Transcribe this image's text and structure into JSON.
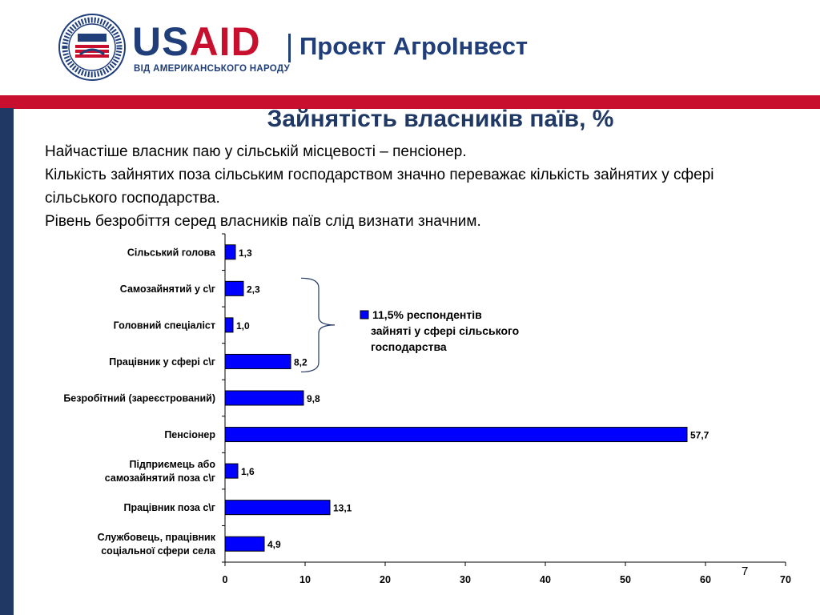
{
  "header": {
    "logo_seal_text": "UNITED STATES AGENCY INTERNATIONAL DEVELOPMENT USAID",
    "logo_word_us": "US",
    "logo_word_aid": "AID",
    "logo_subtitle": "ВІД АМЕРИКАНСЬКОГО НАРОДУ",
    "project_name": "Проект АгроІнвест"
  },
  "colors": {
    "navy": "#1f3864",
    "red": "#c8102e",
    "bar": "#0000ff"
  },
  "slide": {
    "title": "Зайнятість власників паїв, %",
    "paragraphs": [
      "Найчастіше власник паю у сільській місцевості – пенсіонер.",
      "Кількість зайнятих поза сільським господарством значно переважає кількість зайнятих у сфері сільського господарства.",
      "Рівень безробіття серед власників паїв слід визнати значним."
    ],
    "page_number": "7"
  },
  "chart_data": {
    "type": "bar",
    "orientation": "horizontal",
    "categories": [
      "Сільський голова",
      "Самозайнятий у с\\г",
      "Головний спеціаліст",
      "Працівник у сфері с\\г",
      "Безробітний (зареєстрований)",
      "Пенсіонер",
      "Підприємець або самозайнятий поза с\\г",
      "Працівник поза с\\г",
      "Службовець, працівник соціальної сфери села"
    ],
    "category_lines": [
      [
        "Сільський голова"
      ],
      [
        "Самозайнятий у с\\г"
      ],
      [
        "Головний спеціаліст"
      ],
      [
        "Працівник у сфері с\\г"
      ],
      [
        "Безробітний (зареєстрований)"
      ],
      [
        "Пенсіонер"
      ],
      [
        "Підприємець або",
        "самозайнятий поза с\\г"
      ],
      [
        "Працівник поза с\\г"
      ],
      [
        "Службовець, працівник",
        "соціальної сфери села"
      ]
    ],
    "values": [
      1.3,
      2.3,
      1.0,
      8.2,
      9.8,
      57.7,
      1.6,
      13.1,
      4.9
    ],
    "value_labels": [
      "1,3",
      "2,3",
      "1,0",
      "8,2",
      "9,8",
      "57,7",
      "1,6",
      "13,1",
      "4,9"
    ],
    "xlim": [
      0,
      70
    ],
    "xticks": [
      0,
      10,
      20,
      30,
      40,
      50,
      60,
      70
    ],
    "grid": false,
    "annotation": {
      "lines": [
        "11,5% респондентів",
        "зайняті у сфері сільського",
        "господарства"
      ],
      "bracket_categories": [
        1,
        2,
        3
      ]
    }
  }
}
